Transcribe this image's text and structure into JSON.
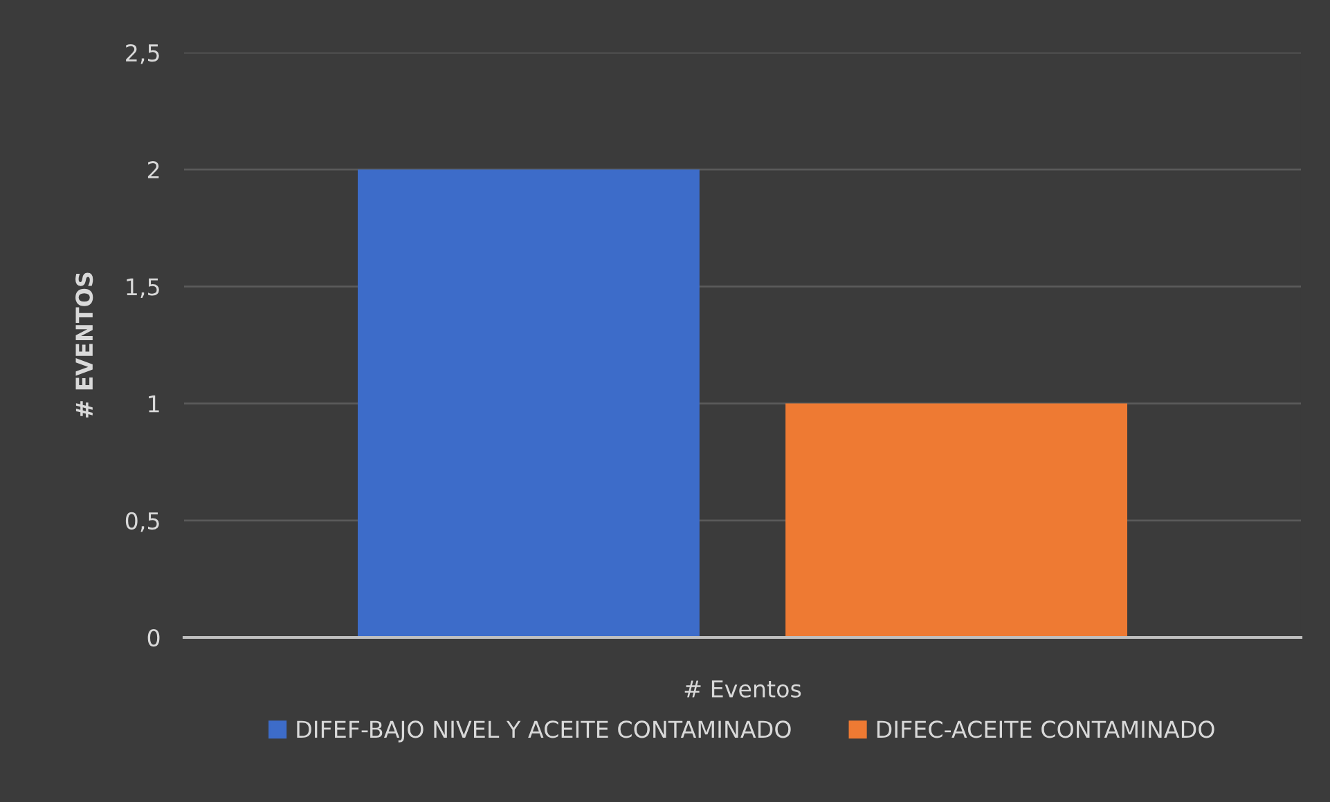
{
  "chart_data": {
    "type": "bar",
    "categories": [
      "# Eventos"
    ],
    "series": [
      {
        "name": "DIFEF-BAJO NIVEL Y ACEITE CONTAMINADO",
        "color": "#3d6cc9",
        "values": [
          2
        ]
      },
      {
        "name": "DIFEC-ACEITE CONTAMINADO",
        "color": "#ee7a33",
        "values": [
          1
        ]
      }
    ],
    "ylabel": "# EVENTOS",
    "ylim": [
      0,
      2.5
    ],
    "yticks": [
      0,
      {
        "value": 0.5,
        "label": "0,5"
      },
      1,
      {
        "value": 1.5,
        "label": "1,5"
      },
      2,
      {
        "value": 2.5,
        "label": "2,5"
      }
    ],
    "grid": "y",
    "legend": "bottom"
  }
}
